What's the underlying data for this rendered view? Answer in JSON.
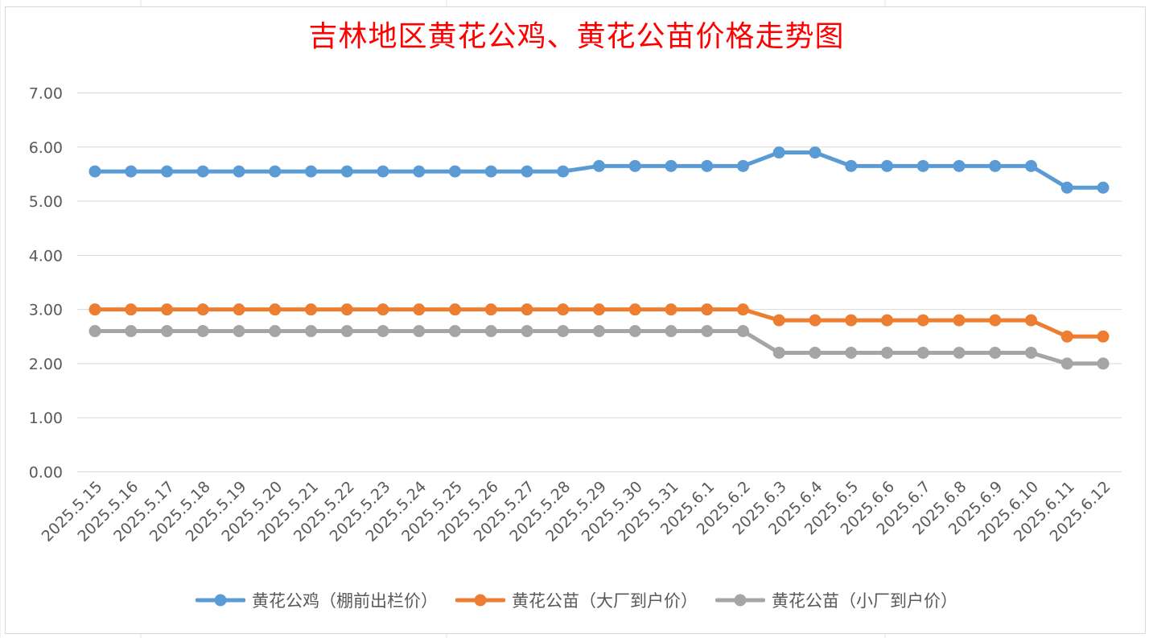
{
  "chart_data": {
    "type": "line",
    "title": "吉林地区黄花公鸡、黄花公苗价格走势图",
    "xlabel": "",
    "ylabel": "",
    "ylim": [
      0,
      7
    ],
    "yticks": [
      "0.00",
      "1.00",
      "2.00",
      "3.00",
      "4.00",
      "5.00",
      "6.00",
      "7.00"
    ],
    "grid": true,
    "legend_position": "bottom",
    "categories": [
      "2025.5.15",
      "2025.5.16",
      "2025.5.17",
      "2025.5.18",
      "2025.5.19",
      "2025.5.20",
      "2025.5.21",
      "2025.5.22",
      "2025.5.23",
      "2025.5.24",
      "2025.5.25",
      "2025.5.26",
      "2025.5.27",
      "2025.5.28",
      "2025.5.29",
      "2025.5.30",
      "2025.5.31",
      "2025.6.1",
      "2025.6.2",
      "2025.6.3",
      "2025.6.4",
      "2025.6.5",
      "2025.6.6",
      "2025.6.7",
      "2025.6.8",
      "2025.6.9",
      "2025.6.10",
      "2025.6.11",
      "2025.6.12"
    ],
    "series": [
      {
        "name": "黄花公鸡（棚前出栏价）",
        "color": "#5b9bd5",
        "values": [
          5.55,
          5.55,
          5.55,
          5.55,
          5.55,
          5.55,
          5.55,
          5.55,
          5.55,
          5.55,
          5.55,
          5.55,
          5.55,
          5.55,
          5.65,
          5.65,
          5.65,
          5.65,
          5.65,
          5.9,
          5.9,
          5.65,
          5.65,
          5.65,
          5.65,
          5.65,
          5.65,
          5.25,
          5.25
        ]
      },
      {
        "name": "黄花公苗（大厂到户价）",
        "color": "#ed7d31",
        "values": [
          3.0,
          3.0,
          3.0,
          3.0,
          3.0,
          3.0,
          3.0,
          3.0,
          3.0,
          3.0,
          3.0,
          3.0,
          3.0,
          3.0,
          3.0,
          3.0,
          3.0,
          3.0,
          3.0,
          2.8,
          2.8,
          2.8,
          2.8,
          2.8,
          2.8,
          2.8,
          2.8,
          2.5,
          2.5
        ]
      },
      {
        "name": "黄花公苗（小厂到户价）",
        "color": "#a5a5a5",
        "values": [
          2.6,
          2.6,
          2.6,
          2.6,
          2.6,
          2.6,
          2.6,
          2.6,
          2.6,
          2.6,
          2.6,
          2.6,
          2.6,
          2.6,
          2.6,
          2.6,
          2.6,
          2.6,
          2.6,
          2.2,
          2.2,
          2.2,
          2.2,
          2.2,
          2.2,
          2.2,
          2.2,
          2.0,
          2.0
        ]
      }
    ]
  }
}
